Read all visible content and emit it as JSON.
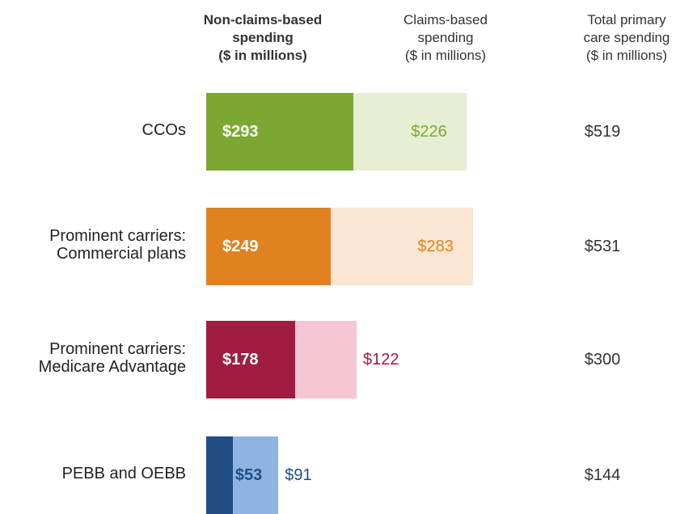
{
  "chart_data": {
    "type": "bar",
    "orientation": "horizontal",
    "stacked": true,
    "categories": [
      "CCOs",
      "Prominent carriers:\nCommercial plans",
      "Prominent carriers:\nMedicare Advantage",
      "PEBB and OEBB"
    ],
    "series": [
      {
        "name": "Non-claims-based\nspending\n($ in millions)",
        "colors": [
          "#7ba832",
          "#e0821f",
          "#a01c40",
          "#1f4e85"
        ],
        "values": [
          293,
          249,
          178,
          53
        ],
        "value_labels": [
          "$293",
          "$249",
          "$178",
          "$53"
        ]
      },
      {
        "name": "Claims-based\nspending\n($ in millions)",
        "colors": [
          "#e6efd3",
          "#fbe6d3",
          "#f7c6d3",
          "#8fb4e3"
        ],
        "values": [
          226,
          283,
          122,
          91
        ],
        "value_labels": [
          "$226",
          "$283",
          "$122",
          "$91"
        ]
      }
    ],
    "totals": {
      "name": "Total primary\ncare spending\n($ in millions)",
      "values": [
        519,
        531,
        300,
        144
      ],
      "value_labels": [
        "$519",
        "$531",
        "$300",
        "$144"
      ]
    }
  }
}
